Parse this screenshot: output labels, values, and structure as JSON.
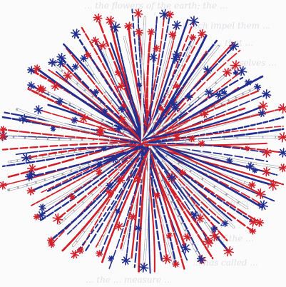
{
  "image": {
    "subject": "",
    "colors": {
      "red": "#d1202a",
      "blue": "#232f8f",
      "white": "#ffffff",
      "outline": "#9a9ca6",
      "background": "#fbfbfb",
      "handwriting": "#c9ccd4"
    },
    "background_text": [
      "... the flowers of the earth; the ...",
      "... which impel them ...",
      "... that ...",
      "... selves ...",
      "... effect ...",
      "... of the ...",
      "... has called ...",
      "... the ... measure ..."
    ]
  }
}
